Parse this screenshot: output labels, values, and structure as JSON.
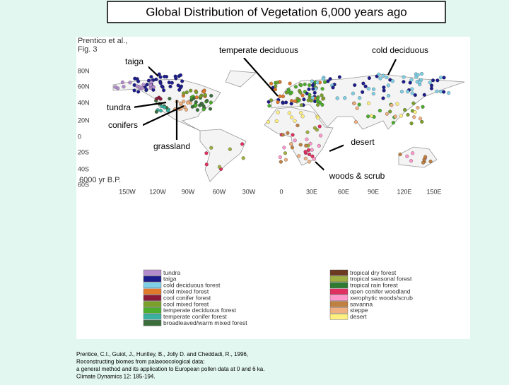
{
  "title": "Global Distribution of Vegetation 6,000 years ago",
  "figure_source": [
    "Prentico et al.,",
    "Fig. 3"
  ],
  "panel_label": "6000 yr B.P.",
  "callouts": [
    "temperate deciduous",
    "cold deciduous",
    "taiga",
    "tundra",
    "conifers",
    "grassland",
    "desert",
    "woods & scrub"
  ],
  "latitude_labels": [
    "80N",
    "60N",
    "40N",
    "20N",
    "0",
    "20S",
    "40S",
    "60S"
  ],
  "longitude_labels": [
    "150W",
    "120W",
    "90W",
    "60W",
    "30W",
    "0",
    "30E",
    "60E",
    "90E",
    "120E",
    "150E"
  ],
  "legend": {
    "left": [
      {
        "label": "tundra",
        "color": "#b48ccc"
      },
      {
        "label": "taiga",
        "color": "#1c1c8c"
      },
      {
        "label": "cold deciduous forest",
        "color": "#7fd0e6"
      },
      {
        "label": "cold mixed forest",
        "color": "#e07a2a"
      },
      {
        "label": "cool conifer forest",
        "color": "#8b1a3a"
      },
      {
        "label": "cool mixed forest",
        "color": "#7aa02a"
      },
      {
        "label": "temperate deciduous forest",
        "color": "#4cae2c"
      },
      {
        "label": "temperate conifer forest",
        "color": "#3ab0a0"
      },
      {
        "label": "broadleaved/warm mixed forest",
        "color": "#3c6e3c"
      }
    ],
    "right": [
      {
        "label": "tropical dry forest",
        "color": "#6b3a20"
      },
      {
        "label": "tropical seasonal forest",
        "color": "#a0b040"
      },
      {
        "label": "tropical rain forest",
        "color": "#2e7a30"
      },
      {
        "label": "open conifer woodland",
        "color": "#e03060"
      },
      {
        "label": "xerophytic woods/scrub",
        "color": "#ff99cc"
      },
      {
        "label": "savanna",
        "color": "#c08040"
      },
      {
        "label": "steppe",
        "color": "#f0b080"
      },
      {
        "label": "desert",
        "color": "#fff080"
      }
    ]
  },
  "citation": [
    "Prentice, C.I., Guiot, J., Huntley, B., Jolly D. and Cheddadi, R., 1996,",
    "Reconstructing biomes from palaeoecological data:",
    "a general method and its application to European pollen data at 0 and 6 ka.",
    "Climate Dynamics 12: 185-194."
  ]
}
